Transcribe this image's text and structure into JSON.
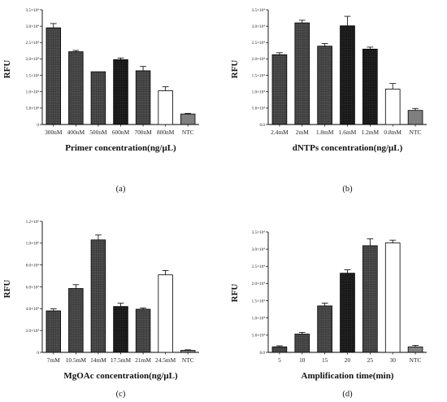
{
  "chart_data": [
    {
      "type": "bar",
      "panel_label": "(a)",
      "ylabel": "RFU",
      "xlabel": "Primer concentration(ng/μL)",
      "ylim": [
        0,
        35000
      ],
      "y_ticks": [
        "0",
        "5.0×10³",
        "1.0×10⁴",
        "1.5×10⁴",
        "2.0×10⁴",
        "2.5×10⁴",
        "3.0×10⁴",
        "3.5×10⁴"
      ],
      "categories": [
        "300nM",
        "400nM",
        "500nM",
        "600nM",
        "700nM",
        "800nM",
        "NTC"
      ],
      "values": [
        29500,
        22200,
        16100,
        19800,
        16400,
        10300,
        3200
      ],
      "errors": [
        1300,
        400,
        0,
        500,
        1300,
        1200,
        200
      ],
      "bar_styles": [
        "dark-dotted",
        "dark-dotted",
        "dark-dotted",
        "black-dotted",
        "dark-dotted",
        "white",
        "gray"
      ]
    },
    {
      "type": "bar",
      "panel_label": "(b)",
      "ylabel": "RFU",
      "xlabel": "dNTPs concentration(ng/μL)",
      "ylim": [
        0,
        35000
      ],
      "y_ticks": [
        "0.0",
        "5.0×10³",
        "1.0×10⁴",
        "1.5×10⁴",
        "2.0×10⁴",
        "2.5×10⁴",
        "3.0×10⁴",
        "3.5×10⁴"
      ],
      "categories": [
        "2.4mM",
        "2mM",
        "1.8mM",
        "1.6mM",
        "1.2mM",
        "0.8mM",
        "NTC"
      ],
      "values": [
        21300,
        31000,
        23900,
        30100,
        23000,
        10800,
        4300
      ],
      "errors": [
        600,
        800,
        800,
        2900,
        600,
        1700,
        600
      ],
      "bar_styles": [
        "dark-dotted",
        "dark-dotted",
        "dark-dotted",
        "black-dotted",
        "black-dotted",
        "white",
        "gray"
      ]
    },
    {
      "type": "bar",
      "panel_label": "(c)",
      "ylabel": "RFU",
      "xlabel": "MgOAc concentration(ng/μL)",
      "ylim": [
        0,
        120000
      ],
      "y_ticks": [
        "0",
        "2.0×10⁴",
        "4.0×10⁴",
        "6.0×10⁴",
        "8.0×10⁴",
        "1.0×10⁵",
        "1.2×10⁵"
      ],
      "categories": [
        "7mM",
        "10.5mM",
        "14mM",
        "17.5mM",
        "21mM",
        "24.5mM",
        "NTC"
      ],
      "values": [
        38000,
        58500,
        103000,
        42000,
        39500,
        71000,
        1800
      ],
      "errors": [
        1800,
        3500,
        4500,
        3000,
        1200,
        4000,
        500
      ],
      "bar_styles": [
        "dark-dotted",
        "dark-dotted",
        "dark-dotted",
        "black-dotted",
        "dark-dotted",
        "white",
        "gray"
      ]
    },
    {
      "type": "bar",
      "panel_label": "(d)",
      "ylabel": "RFU",
      "xlabel": "Amplification time(min)",
      "ylim": [
        0,
        35000
      ],
      "y_ticks": [
        "0.0",
        "5.0×10³",
        "1.0×10⁴",
        "1.5×10⁴",
        "2.0×10⁴",
        "2.5×10⁴",
        "3.0×10⁴",
        "3.5×10⁴"
      ],
      "categories": [
        "5",
        "10",
        "15",
        "20",
        "25",
        "30",
        "NTC"
      ],
      "values": [
        1600,
        5300,
        13500,
        23000,
        31000,
        31800,
        1600
      ],
      "errors": [
        300,
        500,
        800,
        1000,
        2000,
        800,
        400
      ],
      "bar_styles": [
        "dark-dotted",
        "dark-dotted",
        "dark-dotted",
        "black-dotted",
        "dark-dotted",
        "white",
        "gray"
      ]
    }
  ]
}
